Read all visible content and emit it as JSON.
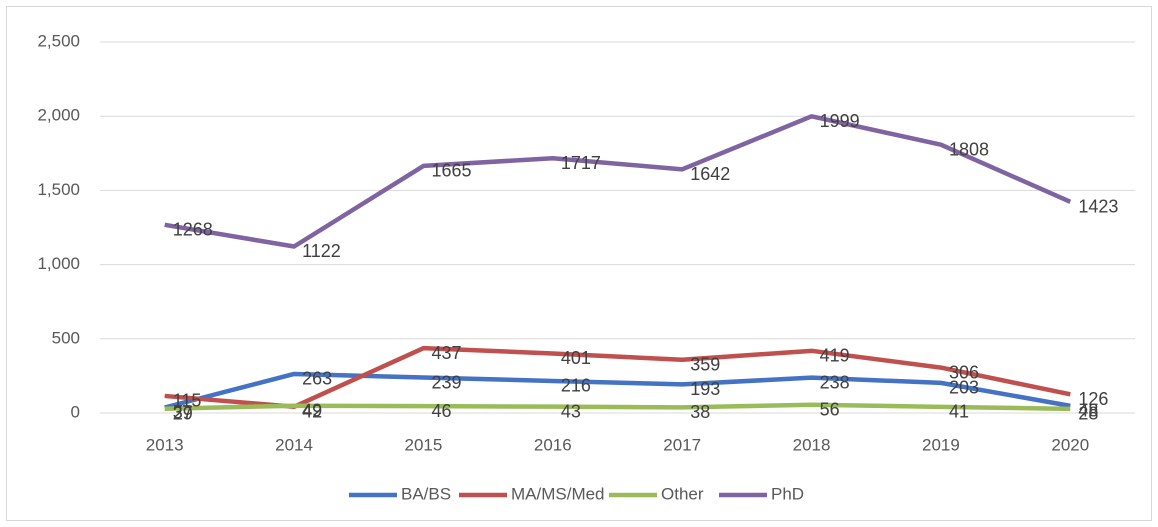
{
  "chart_data": {
    "type": "line",
    "categories": [
      "2013",
      "2014",
      "2015",
      "2016",
      "2017",
      "2018",
      "2019",
      "2020"
    ],
    "series": [
      {
        "name": "BA/BS",
        "color": "#4472c4",
        "values": [
          37,
          263,
          239,
          216,
          193,
          238,
          203,
          48
        ]
      },
      {
        "name": "MA/MS/Med",
        "color": "#c0504d",
        "values": [
          115,
          42,
          437,
          401,
          359,
          419,
          306,
          126
        ]
      },
      {
        "name": "Other",
        "color": "#9bbb59",
        "values": [
          29,
          49,
          46,
          43,
          38,
          56,
          41,
          28
        ]
      },
      {
        "name": "PhD",
        "color": "#8064a2",
        "values": [
          1268,
          1122,
          1665,
          1717,
          1642,
          1999,
          1808,
          1423
        ]
      }
    ],
    "ylim": [
      0,
      2500
    ],
    "yticks": [
      0,
      500,
      {
        "value": 1000,
        "label": "1,000"
      },
      {
        "value": 1500,
        "label": "1,500"
      },
      {
        "value": 2000,
        "label": "2,000"
      },
      {
        "value": 2500,
        "label": "2,500"
      }
    ],
    "grid": true,
    "legend": "bottom"
  }
}
